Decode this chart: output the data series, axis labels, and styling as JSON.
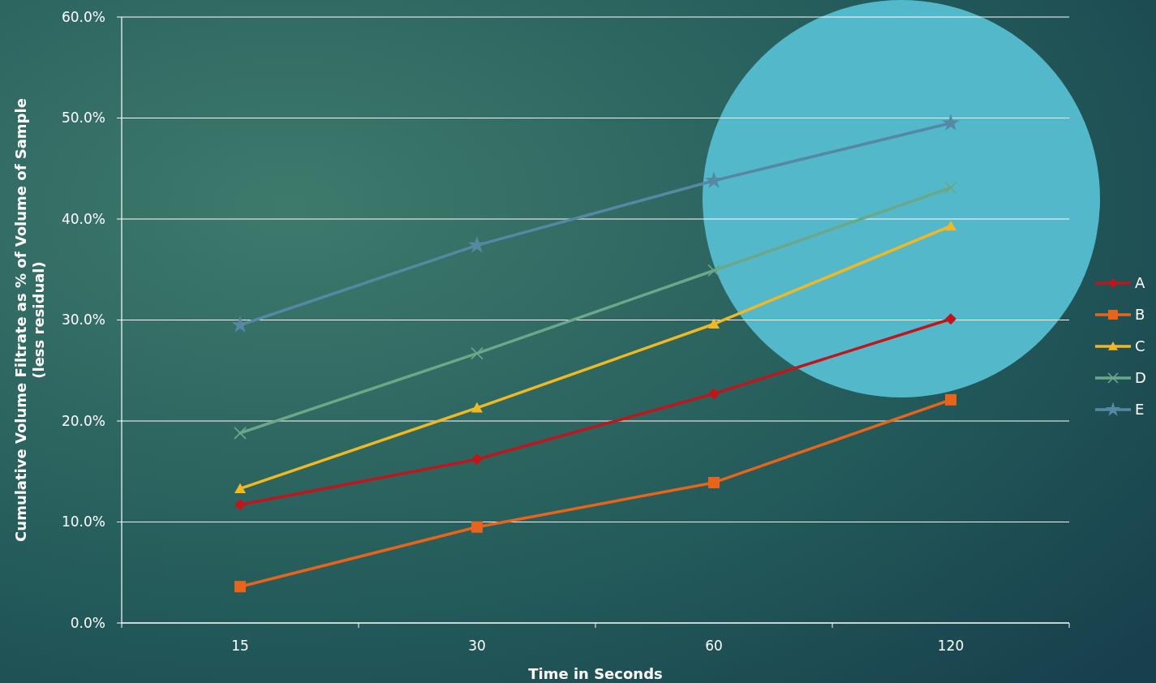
{
  "chart_data": {
    "type": "line",
    "xlabel": "Time in Seconds",
    "ylabel": "Cumulative Volume Filtrate as % of Volume of Sample\n(less residual)",
    "categories": [
      "15",
      "30",
      "60",
      "120"
    ],
    "ylim": [
      0,
      60
    ],
    "yticks": [
      {
        "value": 0,
        "label": "0.0%"
      },
      {
        "value": 10,
        "label": "10.0%"
      },
      {
        "value": 20,
        "label": "20.0%"
      },
      {
        "value": 30,
        "label": "30.0%"
      },
      {
        "value": 40,
        "label": "40.0%"
      },
      {
        "value": 50,
        "label": "50.0%"
      },
      {
        "value": 60,
        "label": "60.0%"
      }
    ],
    "grid": "y",
    "legend": "right",
    "series": [
      {
        "name": "A",
        "color": "#c0161b",
        "marker": "diamond",
        "values": [
          11.7,
          16.2,
          22.7,
          30.1
        ]
      },
      {
        "name": "B",
        "color": "#e8641b",
        "marker": "square",
        "values": [
          3.6,
          9.5,
          13.9,
          22.1
        ]
      },
      {
        "name": "C",
        "color": "#f0b823",
        "marker": "triangle",
        "values": [
          13.3,
          21.3,
          29.6,
          39.3
        ]
      },
      {
        "name": "D",
        "color": "#6aa889",
        "marker": "cross",
        "values": [
          18.8,
          26.7,
          34.9,
          43.1
        ]
      },
      {
        "name": "E",
        "color": "#5588a3",
        "marker": "star",
        "values": [
          29.5,
          37.4,
          43.8,
          49.5
        ]
      }
    ]
  }
}
